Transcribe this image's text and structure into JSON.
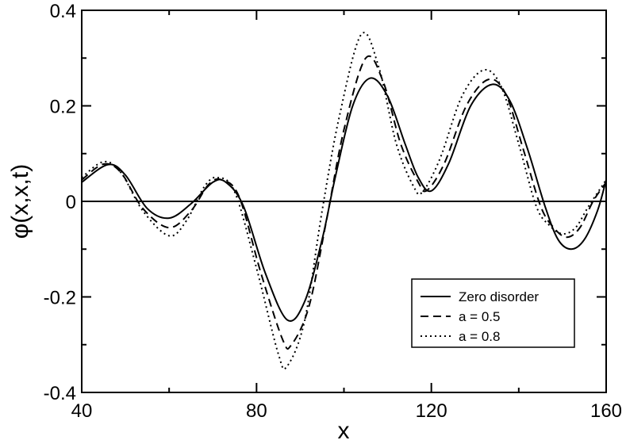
{
  "chart_data": {
    "type": "line",
    "title": "",
    "xlabel": "x",
    "ylabel": "φ(x,x,t)",
    "xlim": [
      40,
      160
    ],
    "ylim": [
      -0.4,
      0.4
    ],
    "xticks": [
      40,
      80,
      120,
      160
    ],
    "xtick_labels": [
      "40",
      "80",
      "120",
      "160"
    ],
    "yticks": [
      -0.4,
      -0.2,
      0,
      0.2,
      0.4
    ],
    "ytick_labels": [
      "-0.4",
      "-0.2",
      "0",
      "0.2",
      "0.4"
    ],
    "grid": false,
    "zero_line": true,
    "legend": {
      "placement": "bottom-right"
    },
    "series": [
      {
        "name": "Zero disorder",
        "style": "solid",
        "color": "#000000",
        "points": [
          [
            40,
            0.04
          ],
          [
            46,
            0.077
          ],
          [
            50,
            0.055
          ],
          [
            55,
            -0.015
          ],
          [
            60,
            -0.035
          ],
          [
            65,
            -0.005
          ],
          [
            70,
            0.04
          ],
          [
            73,
            0.04
          ],
          [
            77,
            -0.01
          ],
          [
            82,
            -0.15
          ],
          [
            87,
            -0.248
          ],
          [
            91,
            -0.21
          ],
          [
            95,
            -0.08
          ],
          [
            98,
            0.05
          ],
          [
            102,
            0.2
          ],
          [
            106,
            0.258
          ],
          [
            110,
            0.22
          ],
          [
            114,
            0.12
          ],
          [
            117,
            0.05
          ],
          [
            120,
            0.022
          ],
          [
            124,
            0.08
          ],
          [
            129,
            0.2
          ],
          [
            134,
            0.245
          ],
          [
            138,
            0.21
          ],
          [
            142,
            0.11
          ],
          [
            146,
            -0.01
          ],
          [
            149,
            -0.08
          ],
          [
            152,
            -0.1
          ],
          [
            155,
            -0.08
          ],
          [
            158,
            -0.02
          ],
          [
            160,
            0.045
          ]
        ]
      },
      {
        "name": "a = 0.5",
        "style": "dashed",
        "color": "#000000",
        "points": [
          [
            40,
            0.045
          ],
          [
            45,
            0.078
          ],
          [
            49,
            0.06
          ],
          [
            54,
            -0.015
          ],
          [
            60,
            -0.055
          ],
          [
            65,
            -0.02
          ],
          [
            69,
            0.035
          ],
          [
            72,
            0.045
          ],
          [
            76,
            0.01
          ],
          [
            81,
            -0.15
          ],
          [
            86,
            -0.29
          ],
          [
            88,
            -0.3
          ],
          [
            92,
            -0.22
          ],
          [
            96,
            -0.04
          ],
          [
            100,
            0.15
          ],
          [
            105,
            0.3
          ],
          [
            109,
            0.25
          ],
          [
            113,
            0.12
          ],
          [
            117,
            0.04
          ],
          [
            119,
            0.023
          ],
          [
            123,
            0.08
          ],
          [
            128,
            0.2
          ],
          [
            133,
            0.255
          ],
          [
            137,
            0.225
          ],
          [
            141,
            0.11
          ],
          [
            145,
            -0.01
          ],
          [
            148,
            -0.055
          ],
          [
            151,
            -0.075
          ],
          [
            154,
            -0.055
          ],
          [
            157,
            0
          ],
          [
            160,
            0.04
          ]
        ]
      },
      {
        "name": "a = 0.8",
        "style": "dotted",
        "color": "#000000",
        "points": [
          [
            40,
            0.05
          ],
          [
            45,
            0.083
          ],
          [
            49,
            0.06
          ],
          [
            54,
            -0.02
          ],
          [
            60,
            -0.072
          ],
          [
            64,
            -0.04
          ],
          [
            68,
            0.03
          ],
          [
            71,
            0.05
          ],
          [
            75,
            0.02
          ],
          [
            80,
            -0.14
          ],
          [
            85,
            -0.32
          ],
          [
            87,
            -0.345
          ],
          [
            91,
            -0.25
          ],
          [
            95,
            -0.02
          ],
          [
            99,
            0.18
          ],
          [
            104,
            0.35
          ],
          [
            108,
            0.28
          ],
          [
            112,
            0.12
          ],
          [
            116,
            0.03
          ],
          [
            118,
            0.02
          ],
          [
            122,
            0.09
          ],
          [
            127,
            0.22
          ],
          [
            132,
            0.275
          ],
          [
            136,
            0.24
          ],
          [
            140,
            0.12
          ],
          [
            144,
            -0.01
          ],
          [
            147,
            -0.05
          ],
          [
            150,
            -0.068
          ],
          [
            153,
            -0.055
          ],
          [
            156,
            -0.01
          ],
          [
            160,
            0.045
          ]
        ]
      }
    ]
  }
}
